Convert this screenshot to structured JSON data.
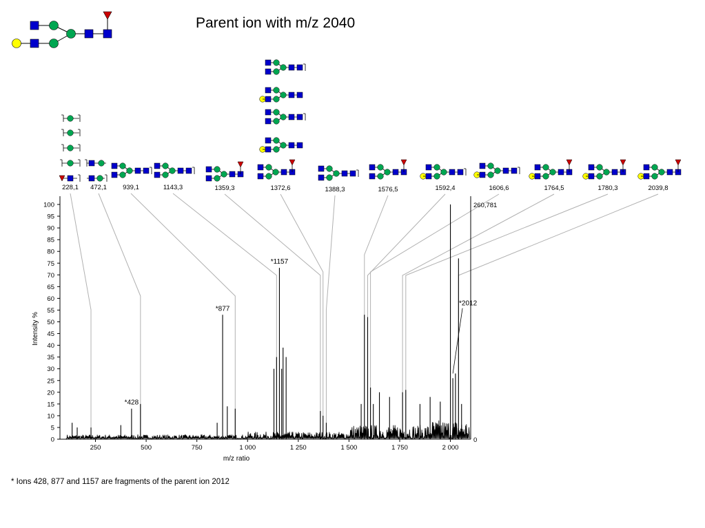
{
  "title": "Parent ion with m/z 2040",
  "footnote": "* Ions 428, 877 and 1157 are fragments of the parent ion 2012",
  "colors": {
    "glcnac": "#0000cc",
    "mannose": "#00a651",
    "galactose": "#ffff00",
    "fucose": "#cc0000",
    "spectrum": "#000000",
    "leader": "#b0b0b0"
  },
  "chart_data": {
    "type": "line",
    "xlabel": "m/z ratio",
    "ylabel": "Intensity %",
    "xlim": [
      75,
      2100
    ],
    "ylim": [
      0,
      100
    ],
    "x_ticks": [
      250,
      500,
      750,
      1000,
      1250,
      1500,
      1750,
      2000
    ],
    "x_tick_labels": [
      "250",
      "500",
      "750",
      "1 000",
      "1 250",
      "1 500",
      "1 750",
      "2 000"
    ],
    "y_ticks": [
      0,
      5,
      10,
      15,
      20,
      25,
      30,
      35,
      40,
      45,
      50,
      55,
      60,
      65,
      70,
      75,
      80,
      85,
      90,
      95,
      100
    ],
    "right_axis_labels": {
      "top": "260,781",
      "bottom": "0"
    },
    "peaks": [
      {
        "x": 135,
        "y": 7
      },
      {
        "x": 160,
        "y": 5
      },
      {
        "x": 228,
        "y": 5
      },
      {
        "x": 375,
        "y": 6
      },
      {
        "x": 428,
        "y": 13
      },
      {
        "x": 472,
        "y": 15
      },
      {
        "x": 850,
        "y": 7
      },
      {
        "x": 877,
        "y": 53
      },
      {
        "x": 900,
        "y": 14
      },
      {
        "x": 939,
        "y": 13
      },
      {
        "x": 1130,
        "y": 30
      },
      {
        "x": 1143,
        "y": 35
      },
      {
        "x": 1157,
        "y": 73
      },
      {
        "x": 1168,
        "y": 30
      },
      {
        "x": 1175,
        "y": 39
      },
      {
        "x": 1190,
        "y": 35
      },
      {
        "x": 1359,
        "y": 12
      },
      {
        "x": 1372,
        "y": 10
      },
      {
        "x": 1388,
        "y": 7
      },
      {
        "x": 1560,
        "y": 15
      },
      {
        "x": 1576,
        "y": 53
      },
      {
        "x": 1592,
        "y": 52
      },
      {
        "x": 1606,
        "y": 22
      },
      {
        "x": 1620,
        "y": 15
      },
      {
        "x": 1650,
        "y": 20
      },
      {
        "x": 1700,
        "y": 18
      },
      {
        "x": 1764,
        "y": 20
      },
      {
        "x": 1780,
        "y": 21
      },
      {
        "x": 1850,
        "y": 15
      },
      {
        "x": 1900,
        "y": 18
      },
      {
        "x": 1950,
        "y": 16
      },
      {
        "x": 2000,
        "y": 100
      },
      {
        "x": 2012,
        "y": 26
      },
      {
        "x": 2025,
        "y": 28
      },
      {
        "x": 2040,
        "y": 77
      },
      {
        "x": 2055,
        "y": 15
      }
    ],
    "annotations": [
      {
        "text": "*428",
        "x": 428,
        "y": 13
      },
      {
        "text": "*877",
        "x": 877,
        "y": 53
      },
      {
        "text": "*1157",
        "x": 1157,
        "y": 73
      },
      {
        "text": "*2012",
        "x": 2012,
        "y": 28
      }
    ],
    "ion_labels": [
      {
        "text": "228,1",
        "x": 228
      },
      {
        "text": "472,1",
        "x": 472
      },
      {
        "text": "939,1",
        "x": 939
      },
      {
        "text": "1143,3",
        "x": 1143
      },
      {
        "text": "1359,3",
        "x": 1359
      },
      {
        "text": "1372,6",
        "x": 1372
      },
      {
        "text": "1388,3",
        "x": 1388
      },
      {
        "text": "1576,5",
        "x": 1576
      },
      {
        "text": "1592,4",
        "x": 1592
      },
      {
        "text": "1606,6",
        "x": 1606
      },
      {
        "text": "1764,5",
        "x": 1764
      },
      {
        "text": "1780,3",
        "x": 1780
      },
      {
        "text": "2039,8",
        "x": 2040
      }
    ]
  }
}
